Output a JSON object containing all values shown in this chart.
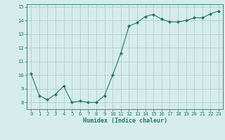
{
  "x": [
    0,
    1,
    2,
    3,
    4,
    5,
    6,
    7,
    8,
    9,
    10,
    11,
    12,
    13,
    14,
    15,
    16,
    17,
    18,
    19,
    20,
    21,
    22,
    23
  ],
  "y": [
    10.1,
    8.5,
    8.2,
    8.6,
    9.2,
    8.0,
    8.1,
    8.0,
    8.0,
    8.5,
    10.0,
    11.6,
    13.6,
    13.85,
    14.3,
    14.45,
    14.1,
    13.9,
    13.9,
    14.0,
    14.2,
    14.2,
    14.5,
    14.7
  ],
  "xlabel": "Humidex (Indice chaleur)",
  "line_color": "#1a7a6e",
  "marker": "D",
  "marker_size": 2.0,
  "background_color": "#d6ecea",
  "grid_color": "#aed0cc",
  "ylim": [
    7.5,
    15.2
  ],
  "xlim": [
    -0.5,
    23.5
  ],
  "yticks": [
    8,
    9,
    10,
    11,
    12,
    13,
    14,
    15
  ],
  "xticks": [
    0,
    1,
    2,
    3,
    4,
    5,
    6,
    7,
    8,
    9,
    10,
    11,
    12,
    13,
    14,
    15,
    16,
    17,
    18,
    19,
    20,
    21,
    22,
    23
  ],
  "xlabel_fontsize": 6.0,
  "tick_fontsize": 5.2
}
